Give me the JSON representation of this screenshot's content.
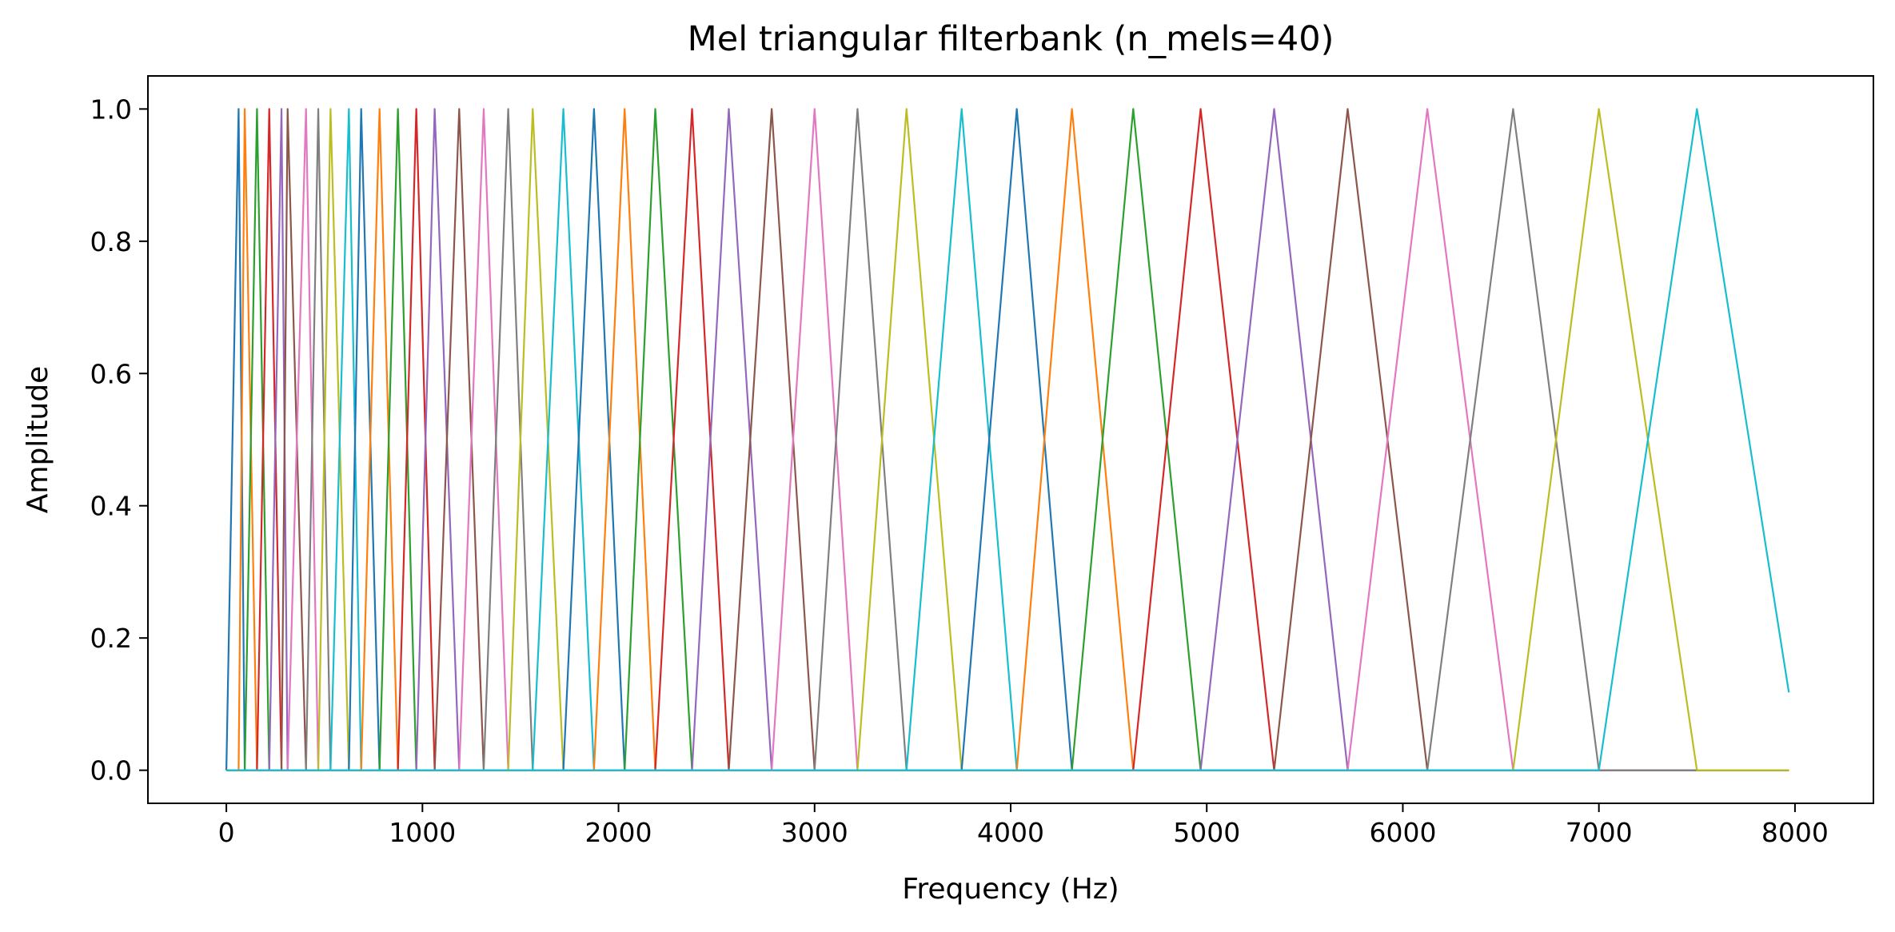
{
  "chart_data": {
    "type": "line",
    "title": "Mel triangular filterbank (n_mels=40)",
    "xlabel": "Frequency (Hz)",
    "ylabel": "Amplitude",
    "xlim": [
      -400,
      8400
    ],
    "ylim": [
      -0.05,
      1.05
    ],
    "xticks": [
      0,
      1000,
      2000,
      3000,
      4000,
      5000,
      6000,
      7000,
      8000
    ],
    "xtick_labels": [
      "0",
      "1000",
      "2000",
      "3000",
      "4000",
      "5000",
      "6000",
      "7000",
      "8000"
    ],
    "yticks": [
      0.0,
      0.2,
      0.4,
      0.6,
      0.8,
      1.0
    ],
    "ytick_labels": [
      "0.0",
      "0.2",
      "0.4",
      "0.6",
      "0.8",
      "1.0"
    ],
    "grid": false,
    "legend": false,
    "line_colors": [
      "#1f77b4",
      "#ff7f0e",
      "#2ca02c",
      "#d62728",
      "#9467bd",
      "#8c564b",
      "#e377c2",
      "#7f7f7f",
      "#bcbd22",
      "#17becf"
    ],
    "frequency_range": [
      0,
      7968.75
    ],
    "filter_edges_hz": [
      0,
      62.5,
      93.75,
      156.25,
      218.75,
      281.25,
      312.5,
      406.25,
      468.75,
      531.25,
      625,
      687.5,
      781.25,
      875,
      968.75,
      1062.5,
      1187.5,
      1312.5,
      1437.5,
      1562.5,
      1718.75,
      1875,
      2031.25,
      2187.5,
      2375,
      2562.5,
      2781.25,
      3000,
      3218.75,
      3468.75,
      3750,
      4031.25,
      4312.5,
      4625,
      4968.75,
      5343.75,
      5718.75,
      6125,
      6562.5,
      7000,
      7500,
      8031.25
    ]
  }
}
